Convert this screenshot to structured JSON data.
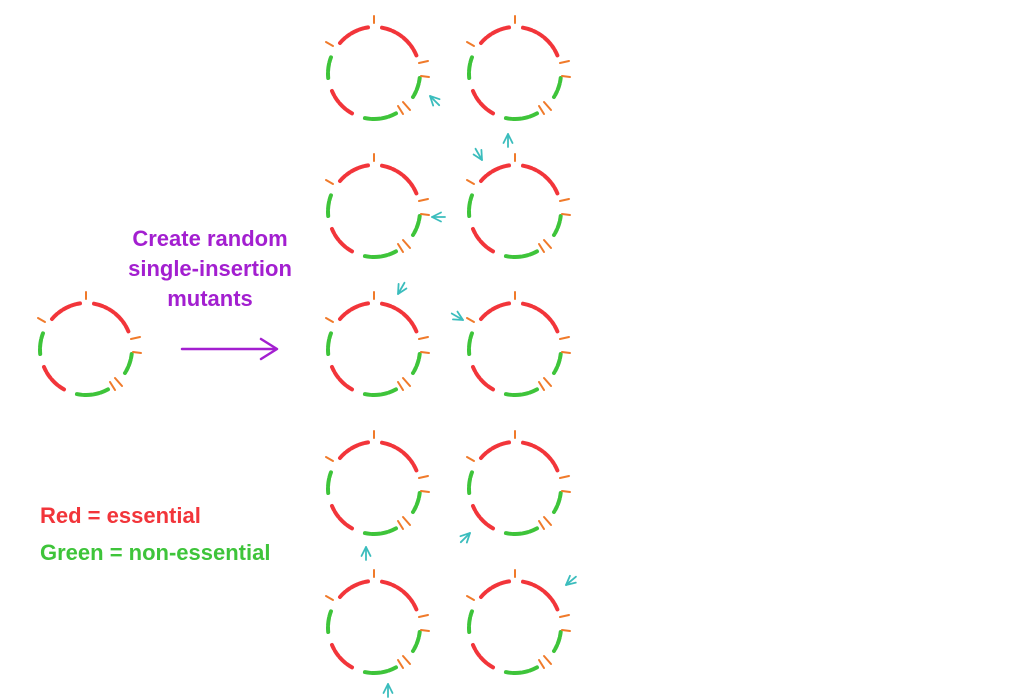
{
  "caption": {
    "line1": "Create random",
    "line2": "single-insertion",
    "line3": "mutants"
  },
  "legend": {
    "red": "Red = essential",
    "green": "Green = non-essential"
  },
  "colors": {
    "essential": "#f2353a",
    "non_essential": "#3ec43a",
    "insertion_tick": "#f07a2a",
    "process_arrow": "#a31fd0",
    "mutation_arrow": "#3bbdbd"
  },
  "icons": {
    "genome": "circular-genome-icon",
    "insertion": "insertion-arrow-icon"
  }
}
